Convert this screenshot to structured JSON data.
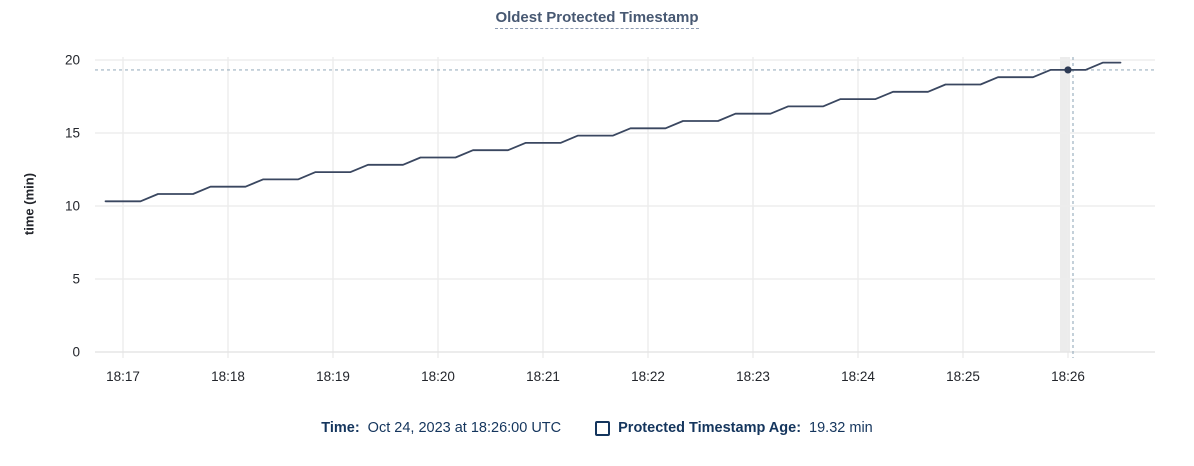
{
  "title": "Oldest Protected Timestamp",
  "footer": {
    "time_label": "Time:",
    "time_value": "Oct 24, 2023 at 18:26:00 UTC",
    "series_label": "Protected Timestamp Age:",
    "series_value": "19.32 min"
  },
  "colors": {
    "line": "#3a4760",
    "dot": "#2e3b55",
    "grid": "#ededed",
    "grid_dark": "#e5e5e5",
    "hover_band": "#ececec",
    "crosshair": "#9db2c0",
    "title": "#475872",
    "title_underline": "#8d9cb3",
    "axis_text": "#23262c",
    "footer_text": "#14355d"
  },
  "chart_data": {
    "type": "line",
    "title": "Oldest Protected Timestamp",
    "xlabel": "",
    "ylabel": "time (min)",
    "ylim": [
      0,
      20
    ],
    "yticks": [
      0,
      5,
      10,
      15,
      20
    ],
    "x_unit": "seconds relative to 18:17:00 UTC on Oct 24, 2023",
    "xticks": [
      {
        "label": "18:17",
        "t": 0
      },
      {
        "label": "18:18",
        "t": 60
      },
      {
        "label": "18:19",
        "t": 120
      },
      {
        "label": "18:20",
        "t": 180
      },
      {
        "label": "18:21",
        "t": 240
      },
      {
        "label": "18:22",
        "t": 300
      },
      {
        "label": "18:23",
        "t": 360
      },
      {
        "label": "18:24",
        "t": 420
      },
      {
        "label": "18:25",
        "t": 480
      },
      {
        "label": "18:26",
        "t": 540
      }
    ],
    "grid": true,
    "legend_position": "bottom",
    "series": [
      {
        "name": "Protected Timestamp Age",
        "points": [
          [
            -10,
            10.32
          ],
          [
            0,
            10.32
          ],
          [
            10,
            10.32
          ],
          [
            20,
            10.82
          ],
          [
            30,
            10.82
          ],
          [
            40,
            10.82
          ],
          [
            50,
            11.32
          ],
          [
            60,
            11.32
          ],
          [
            70,
            11.32
          ],
          [
            80,
            11.82
          ],
          [
            90,
            11.82
          ],
          [
            100,
            11.82
          ],
          [
            110,
            12.32
          ],
          [
            120,
            12.32
          ],
          [
            130,
            12.32
          ],
          [
            140,
            12.82
          ],
          [
            150,
            12.82
          ],
          [
            160,
            12.82
          ],
          [
            170,
            13.32
          ],
          [
            180,
            13.32
          ],
          [
            190,
            13.32
          ],
          [
            200,
            13.82
          ],
          [
            210,
            13.82
          ],
          [
            220,
            13.82
          ],
          [
            230,
            14.32
          ],
          [
            240,
            14.32
          ],
          [
            250,
            14.32
          ],
          [
            260,
            14.82
          ],
          [
            270,
            14.82
          ],
          [
            280,
            14.82
          ],
          [
            290,
            15.32
          ],
          [
            300,
            15.32
          ],
          [
            310,
            15.32
          ],
          [
            320,
            15.82
          ],
          [
            330,
            15.82
          ],
          [
            340,
            15.82
          ],
          [
            350,
            16.32
          ],
          [
            360,
            16.32
          ],
          [
            370,
            16.32
          ],
          [
            380,
            16.82
          ],
          [
            390,
            16.82
          ],
          [
            400,
            16.82
          ],
          [
            410,
            17.32
          ],
          [
            420,
            17.32
          ],
          [
            430,
            17.32
          ],
          [
            440,
            17.82
          ],
          [
            450,
            17.82
          ],
          [
            460,
            17.82
          ],
          [
            470,
            18.32
          ],
          [
            480,
            18.32
          ],
          [
            490,
            18.32
          ],
          [
            500,
            18.82
          ],
          [
            510,
            18.82
          ],
          [
            520,
            18.82
          ],
          [
            530,
            19.32
          ],
          [
            540,
            19.32
          ],
          [
            550,
            19.32
          ],
          [
            560,
            19.82
          ],
          [
            570,
            19.82
          ]
        ]
      }
    ],
    "hover": {
      "t": 540,
      "time_label": "Oct 24, 2023 at 18:26:00 UTC",
      "value": 19.32,
      "value_label": "19.32 min"
    }
  }
}
